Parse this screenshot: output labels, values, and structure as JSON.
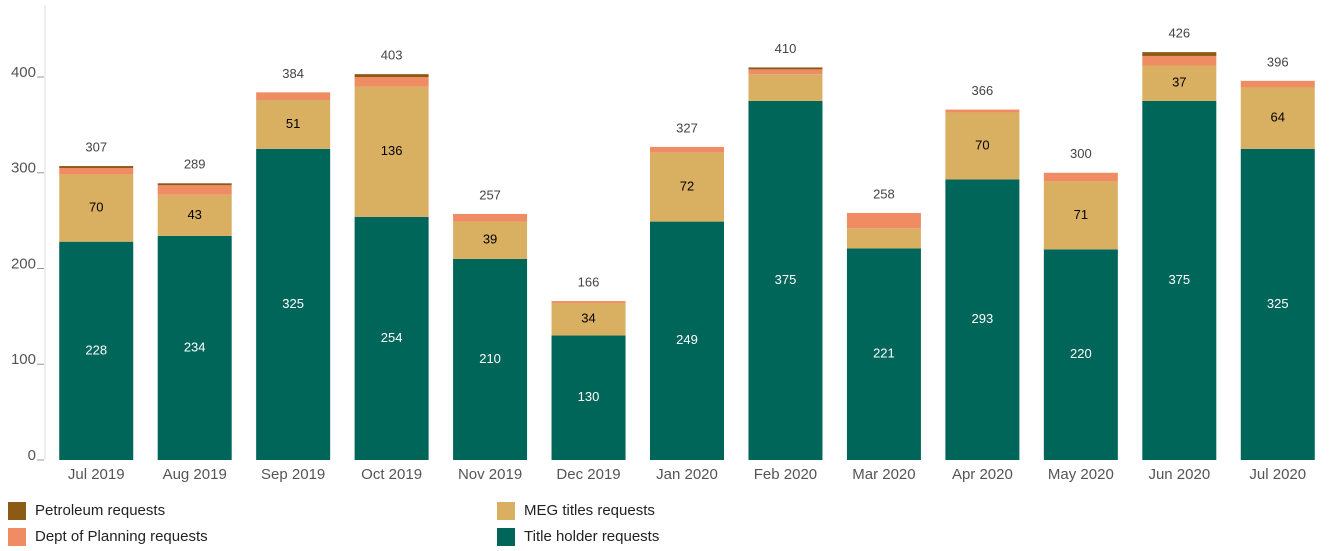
{
  "chart_data": {
    "type": "stacked_bar",
    "categories": [
      "Jul 2019",
      "Aug 2019",
      "Sep 2019",
      "Oct 2019",
      "Nov 2019",
      "Dec 2019",
      "Jan 2020",
      "Feb 2020",
      "Mar 2020",
      "Apr 2020",
      "May 2020",
      "Jun 2020",
      "Jul 2020"
    ],
    "series": [
      {
        "name": "Title holder requests",
        "color": "#00665a",
        "label_color": "#ffffff",
        "values": [
          228,
          234,
          325,
          254,
          210,
          130,
          249,
          375,
          221,
          293,
          220,
          375,
          325
        ],
        "value_labels": [
          "228",
          "234",
          "325",
          "254",
          "210",
          "130",
          "249",
          "375",
          "221",
          "293",
          "220",
          "375",
          "325"
        ]
      },
      {
        "name": "MEG titles requests",
        "color": "#d9b062",
        "label_color": "#000000",
        "values": [
          70,
          43,
          51,
          136,
          39,
          34,
          72,
          28,
          21,
          70,
          71,
          37,
          64
        ],
        "value_labels": [
          "70",
          "43",
          "51",
          "136",
          "39",
          "34",
          "72",
          null,
          null,
          "70",
          "71",
          "37",
          "64"
        ]
      },
      {
        "name": "Dept of Planning requests",
        "color": "#f08c64",
        "values": [
          7,
          10,
          8,
          10,
          8,
          2,
          6,
          5,
          16,
          3,
          9,
          10,
          7
        ]
      },
      {
        "name": "Petroleum requests",
        "color": "#8b5a14",
        "values": [
          2,
          2,
          0,
          3,
          0,
          0,
          0,
          2,
          0,
          0,
          0,
          4,
          0
        ]
      }
    ],
    "totals": [
      307,
      289,
      384,
      403,
      257,
      166,
      327,
      410,
      258,
      366,
      300,
      426,
      396
    ],
    "ylim": [
      0,
      470
    ],
    "yticks": [
      0,
      100,
      200,
      300,
      400
    ]
  }
}
